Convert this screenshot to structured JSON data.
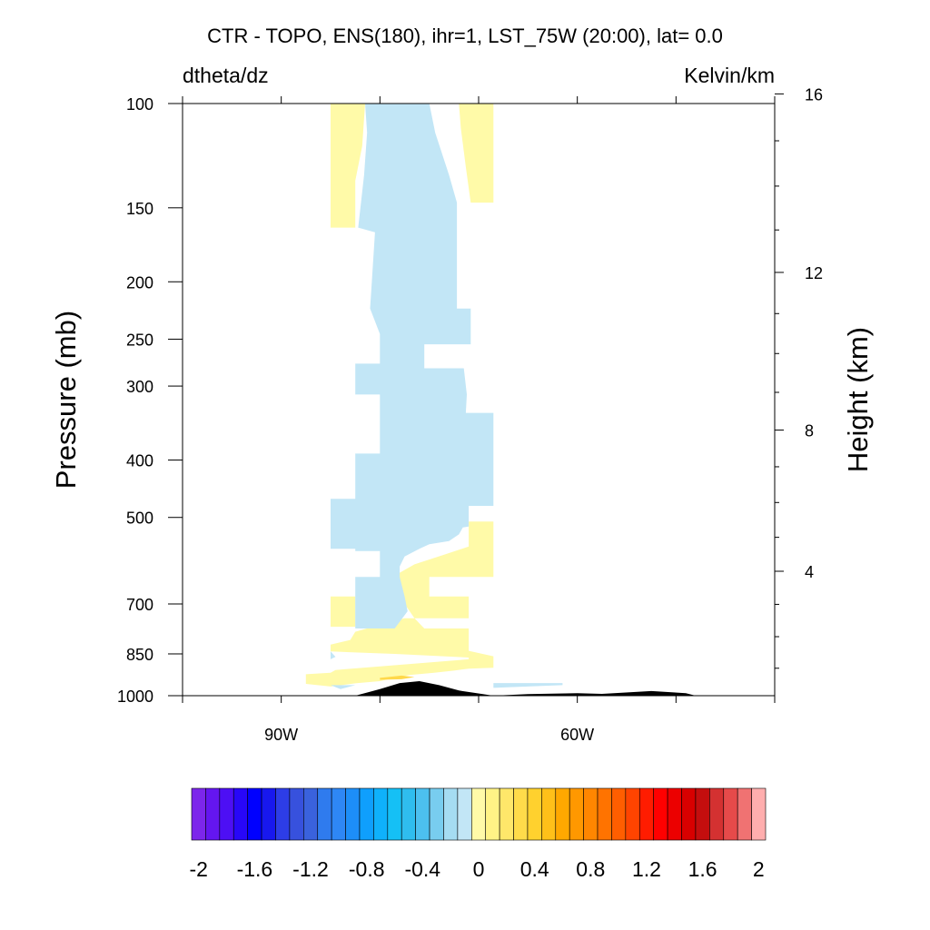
{
  "chart_data": {
    "type": "heatmap",
    "title": "CTR - TOPO, ENS(180), ihr=1, LST_75W (20:00), lat=  0.0",
    "subtitle_left": "dtheta/dz",
    "subtitle_right": "Kelvin/km",
    "xlabel": "",
    "ylabel": "Pressure (mb)",
    "ylabel_right": "Height (km)",
    "x_axis": {
      "units": "degrees longitude",
      "range": [
        -100,
        -40
      ],
      "major_ticks": [
        -100,
        -90,
        -80,
        -70,
        -60,
        -50,
        -40
      ],
      "tick_labels": [
        {
          "value": -90,
          "label": "90W"
        },
        {
          "value": -60,
          "label": "60W"
        }
      ]
    },
    "y_axis": {
      "scale": "log",
      "range": [
        1000,
        100
      ],
      "tick_values": [
        100,
        150,
        200,
        250,
        300,
        400,
        500,
        700,
        850,
        1000
      ],
      "tick_labels": [
        "100",
        "150",
        "200",
        "250",
        "300",
        "400",
        "500",
        "700",
        "850",
        "1000"
      ]
    },
    "y_axis_right": {
      "tick_values": [
        4,
        8,
        12,
        16
      ],
      "tick_labels": [
        "4",
        "8",
        "12",
        "16"
      ]
    },
    "contour_fill_regions": [
      {
        "level": "0 to 0.1",
        "color": "#fffaa8",
        "points": [
          [
            -85,
            100
          ],
          [
            -81.5,
            100
          ],
          [
            -81.8,
            118
          ],
          [
            -82.5,
            135
          ],
          [
            -82.5,
            162
          ],
          [
            -85,
            162
          ]
        ]
      },
      {
        "level": "0 to 0.1",
        "color": "#fffaa8",
        "points": [
          [
            -72,
            100
          ],
          [
            -68.5,
            100
          ],
          [
            -68.5,
            147
          ],
          [
            -70.8,
            147
          ],
          [
            -71.3,
            128
          ],
          [
            -71.8,
            110
          ]
        ]
      },
      {
        "level": "0 to 0.1",
        "color": "#fffaa8",
        "points": [
          [
            -85,
            680
          ],
          [
            -82.5,
            680
          ],
          [
            -82.5,
            765
          ],
          [
            -85,
            765
          ]
        ]
      },
      {
        "level": "0 to 0.1",
        "color": "#fffaa8",
        "points": [
          [
            -71,
            508
          ],
          [
            -68.5,
            508
          ],
          [
            -68.5,
            630
          ],
          [
            -75,
            630
          ],
          [
            -75,
            680
          ],
          [
            -71,
            680
          ],
          [
            -71,
            740
          ],
          [
            -77.5,
            740
          ],
          [
            -79.5,
            755
          ],
          [
            -82.5,
            780
          ],
          [
            -83,
            805
          ],
          [
            -85,
            820
          ],
          [
            -85,
            842
          ],
          [
            -78.5,
            850
          ],
          [
            -71,
            862
          ],
          [
            -71,
            868
          ],
          [
            -84.5,
            905
          ],
          [
            -85,
            915
          ],
          [
            -87.5,
            920
          ],
          [
            -87.5,
            955
          ],
          [
            -85,
            965
          ],
          [
            -82.5,
            953
          ],
          [
            -80,
            945
          ],
          [
            -78.5,
            933
          ],
          [
            -77,
            923
          ],
          [
            -74.5,
            915
          ],
          [
            -72.5,
            907
          ],
          [
            -71,
            900
          ],
          [
            -68.5,
            897
          ],
          [
            -68.5,
            858
          ],
          [
            -71,
            840
          ],
          [
            -71,
            770
          ],
          [
            -75.5,
            770
          ],
          [
            -76.5,
            740
          ],
          [
            -77.5,
            700
          ],
          [
            -78.2,
            650
          ],
          [
            -78,
            620
          ],
          [
            -76.5,
            600
          ],
          [
            -73.5,
            578
          ],
          [
            -71,
            560
          ]
        ]
      },
      {
        "level": "0.2 to 0.4",
        "color": "#ffd84a",
        "points": [
          [
            -80,
            933
          ],
          [
            -77.8,
            925
          ],
          [
            -76.5,
            930
          ],
          [
            -77.8,
            938
          ],
          [
            -80,
            940
          ]
        ]
      },
      {
        "level": "-0.1 to 0",
        "color": "#c2e6f6",
        "points": [
          [
            -81.5,
            100
          ],
          [
            -75,
            100
          ],
          [
            -74.4,
            112
          ],
          [
            -73,
            132
          ],
          [
            -72.2,
            147
          ],
          [
            -72.2,
            222
          ],
          [
            -70.8,
            222
          ],
          [
            -70.8,
            255
          ],
          [
            -75.5,
            255
          ],
          [
            -75.5,
            280
          ],
          [
            -71.5,
            280
          ],
          [
            -71.2,
            310
          ],
          [
            -71.3,
            333
          ],
          [
            -68.5,
            333
          ],
          [
            -68.5,
            478
          ],
          [
            -71,
            478
          ],
          [
            -71,
            518
          ],
          [
            -71.6,
            520
          ],
          [
            -72,
            534
          ],
          [
            -73,
            548
          ],
          [
            -75,
            555
          ],
          [
            -76,
            565
          ],
          [
            -77.5,
            582
          ],
          [
            -78,
            605
          ],
          [
            -78,
            630
          ],
          [
            -77.5,
            680
          ],
          [
            -77.2,
            720
          ],
          [
            -78.5,
            770
          ],
          [
            -79.5,
            770
          ],
          [
            -82.5,
            770
          ],
          [
            -82.5,
            630
          ],
          [
            -80,
            630
          ],
          [
            -80,
            570
          ],
          [
            -82.5,
            570
          ],
          [
            -82.5,
            565
          ],
          [
            -85,
            565
          ],
          [
            -85,
            465
          ],
          [
            -82.5,
            465
          ],
          [
            -82.5,
            390
          ],
          [
            -80,
            390
          ],
          [
            -80,
            310
          ],
          [
            -82.5,
            310
          ],
          [
            -82.5,
            275
          ],
          [
            -80,
            275
          ],
          [
            -80,
            245
          ],
          [
            -81,
            222
          ],
          [
            -80.5,
            165
          ],
          [
            -82.2,
            162
          ],
          [
            -81.6,
            132
          ],
          [
            -81.3,
            112
          ]
        ]
      },
      {
        "level": "-0.1 to 0",
        "color": "#c2e6f6",
        "points": [
          [
            -85,
            842
          ],
          [
            -84.5,
            860
          ],
          [
            -85,
            868
          ]
        ]
      },
      {
        "level": "-0.1 to 0",
        "color": "#c2e6f6",
        "points": [
          [
            -85,
            960
          ],
          [
            -84,
            975
          ],
          [
            -82.5,
            960
          ]
        ]
      },
      {
        "level": "-0.1 to 0",
        "color": "#c2e6f6",
        "points": [
          [
            -68.5,
            952
          ],
          [
            -61.5,
            952
          ],
          [
            -61.5,
            960
          ],
          [
            -63,
            962
          ],
          [
            -68.5,
            970
          ]
        ]
      }
    ],
    "terrain_profile": {
      "color": "#000000",
      "points": [
        [
          -82.5,
          1000
        ],
        [
          -80,
          975
        ],
        [
          -78,
          952
        ],
        [
          -76,
          945
        ],
        [
          -74,
          960
        ],
        [
          -72,
          980
        ],
        [
          -68.5,
          1000
        ],
        [
          -65,
          994
        ],
        [
          -60,
          990
        ],
        [
          -57.5,
          993
        ],
        [
          -52.5,
          982
        ],
        [
          -49,
          990
        ],
        [
          -48,
          1000
        ]
      ]
    },
    "colorbar": {
      "min": -2,
      "max": 2,
      "step": 0.1,
      "colors": [
        "#7c26eb",
        "#6416f0",
        "#4d0ff4",
        "#2807f8",
        "#0000ff",
        "#1818ee",
        "#2d3de7",
        "#3751dd",
        "#3a62dd",
        "#2f7bee",
        "#2e87f5",
        "#1d8ef8",
        "#0f9ffd",
        "#0fb1fb",
        "#15c0f5",
        "#2fbdee",
        "#4cc0ef",
        "#78cdef",
        "#a5dcf2",
        "#c2e6f6",
        "#fffaa8",
        "#fff386",
        "#ffe76a",
        "#ffdb4a",
        "#ffd12e",
        "#ffc019",
        "#ffa800",
        "#ff9800",
        "#ff8600",
        "#ff7300",
        "#ff5e00",
        "#ff4400",
        "#ff1c00",
        "#ff0000",
        "#ec0000",
        "#d80000",
        "#c40e0e",
        "#d43131",
        "#e64a4a",
        "#f07272",
        "#ffaeae"
      ],
      "tick_labels": [
        "-2",
        "-1.6",
        "-1.2",
        "-0.8",
        "-0.4",
        "0",
        "0.4",
        "0.8",
        "1.2",
        "1.6",
        "2"
      ]
    },
    "legend": "colorbar bottom",
    "grid": false
  }
}
